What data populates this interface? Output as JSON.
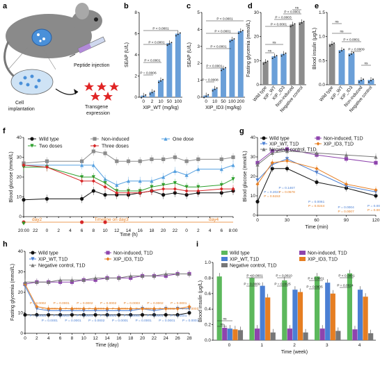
{
  "panel_labels": [
    "a",
    "b",
    "c",
    "d",
    "e",
    "f",
    "g",
    "h",
    "i"
  ],
  "panel_a": {
    "peptide_label": "Peptide injection",
    "implant_label_1": "Cell",
    "implant_label_2": "implantation",
    "expr_label_1": "Transgene",
    "expr_label_2": "expression"
  },
  "colors": {
    "wild": "#111111",
    "noninduced": "#9b59b6",
    "xipwt": "#4a7fd4",
    "xipid3": "#e67e22",
    "negctrl": "#777777",
    "bar_blue": "#6a9fd8",
    "twodoses": "#2ca02c",
    "threedoses": "#d62728",
    "onedose": "#56a0e0",
    "grey": "#8c8c8c",
    "purple": "#8e44ad",
    "green": "#5cb85c"
  },
  "chart_data": [
    {
      "panel": "b",
      "type": "bar",
      "categories": [
        "0",
        "2",
        "10",
        "50",
        "100"
      ],
      "values": [
        0.15,
        0.5,
        1.6,
        5.1,
        6.0
      ],
      "xlabel": "XIP_WT (mg/kg)",
      "ylabel": "SEAP (U/L)",
      "ylim": [
        0,
        8
      ],
      "yticks": [
        "0",
        "2",
        "4",
        "6",
        "8"
      ],
      "annotations": [
        "P = 0.0006",
        "P < 0.0001",
        "P < 0.0001",
        "P < 0.0001"
      ]
    },
    {
      "panel": "c",
      "type": "bar",
      "categories": [
        "0",
        "10",
        "50",
        "100",
        "200"
      ],
      "values": [
        0.1,
        0.5,
        1.7,
        3.4,
        3.9
      ],
      "xlabel": "XIP_ID3 (mg/kg)",
      "ylabel": "SEAP (U/L)",
      "ylim": [
        0,
        5
      ],
      "yticks": [
        "0",
        "1",
        "2",
        "3",
        "4",
        "5"
      ],
      "annotations": [
        "P = 0.0008",
        "P < 0.0001",
        "P < 0.0001",
        "P < 0.0001",
        "P < 0.0001"
      ]
    },
    {
      "panel": "d",
      "type": "bar",
      "categories": [
        "Wild type",
        "XIP_WT",
        "XIP_ID3",
        "Non-induced",
        "Negative control"
      ],
      "values": [
        9.5,
        11.8,
        12.8,
        25.0,
        26.0
      ],
      "ylabel": "Fasting glycemia (mmol/L)",
      "ylim": [
        0,
        30
      ],
      "yticks": [
        "0",
        "10",
        "20",
        "30"
      ],
      "annotations": [
        "ns",
        "ns",
        "P < 0.0001",
        "P = 0.0003",
        "P < 0.0001",
        "ns"
      ]
    },
    {
      "panel": "e",
      "type": "bar",
      "categories": [
        "Wild type",
        "XIP_WT",
        "XIP_ID3",
        "Non-induced",
        "Negative control"
      ],
      "values": [
        0.85,
        0.72,
        0.65,
        0.1,
        0.1
      ],
      "ylabel": "Blood insulin (μg/L)",
      "ylim": [
        0,
        1.5
      ],
      "yticks": [
        "0.0",
        "0.5",
        "1.0",
        "1.5"
      ],
      "annotations": [
        "ns",
        "ns",
        "P = 0.0009",
        "P < 0.0001",
        "ns"
      ]
    },
    {
      "panel": "f",
      "type": "line",
      "xlabel": "Time (h)",
      "ylabel": "Blood glucose (mmol/L)",
      "ylim": [
        0,
        40
      ],
      "yticks": [
        "0",
        "10",
        "20",
        "30",
        "40"
      ],
      "xticks": [
        "20:00",
        "22",
        "0",
        "2",
        "4",
        "6",
        "8",
        "10",
        "12",
        "14",
        "16",
        "18",
        "20",
        "22",
        "0",
        "2",
        "4",
        "6",
        "8:00"
      ],
      "x": [
        0,
        2,
        10,
        11,
        12,
        13,
        14,
        15,
        16,
        17,
        18,
        19,
        20,
        22,
        23
      ],
      "series": [
        {
          "name": "Wild type",
          "values": [
            8.5,
            9,
            9,
            13,
            11,
            11,
            11,
            12,
            13,
            11,
            12,
            11,
            12,
            12,
            13
          ]
        },
        {
          "name": "Non-induced",
          "values": [
            27,
            28,
            28,
            33,
            32,
            28,
            28,
            28,
            29,
            29,
            30,
            28,
            29,
            29,
            30
          ]
        },
        {
          "name": "One dose",
          "values": [
            26,
            26,
            26,
            26,
            19,
            16,
            18,
            18,
            18,
            20,
            23,
            21,
            24,
            24,
            26
          ]
        },
        {
          "name": "Two doses",
          "values": [
            25,
            25,
            20,
            20,
            17,
            13,
            13,
            13,
            15,
            16,
            17,
            15,
            15,
            16,
            19
          ]
        },
        {
          "name": "Three doses",
          "values": [
            26,
            25,
            18,
            18,
            15,
            12,
            12,
            12,
            13,
            14,
            14,
            13,
            13,
            14,
            14
          ]
        }
      ],
      "timeline": {
        "day2": "day2",
        "day3": "Timeline on day3",
        "day4": "day4"
      }
    },
    {
      "panel": "g",
      "type": "line",
      "xlabel": "Time (min)",
      "ylabel": "Blood glucose (mmol/L)",
      "ylim": [
        0,
        40
      ],
      "yticks": [
        "0",
        "10",
        "20",
        "30",
        "40"
      ],
      "x": [
        0,
        15,
        30,
        60,
        90,
        120
      ],
      "xticks": [
        "0",
        "30",
        "60",
        "90",
        "120"
      ],
      "series": [
        {
          "name": "Wild type",
          "values": [
            7,
            24,
            24,
            17,
            14,
            10
          ]
        },
        {
          "name": "Non-induced, T1D",
          "values": [
            27,
            33,
            34,
            31,
            29,
            27
          ]
        },
        {
          "name": "XIP_WT, T1D",
          "values": [
            18,
            26,
            29,
            22,
            15,
            12
          ]
        },
        {
          "name": "XIP_ID3, T1D",
          "values": [
            16,
            27,
            28,
            24,
            16,
            13
          ]
        },
        {
          "name": "Negative control, T1D",
          "values": [
            26,
            32,
            33,
            32,
            31,
            30
          ]
        }
      ],
      "annotations_blue": [
        "P = 0.2021",
        "P = 0.1467",
        "P = 0.0061",
        "P = 0.0004",
        "P = 0.0024"
      ],
      "annotations_orange": [
        "P = 0.5153",
        "P = 0.0578",
        "P = 0.0244",
        "P = 0.0007",
        "P = 0.0009"
      ]
    },
    {
      "panel": "h",
      "type": "line",
      "xlabel": "Time (day)",
      "ylabel": "Fasting glycemia (mmol/L)",
      "ylim": [
        0,
        40
      ],
      "yticks": [
        "0",
        "10",
        "20",
        "30",
        "40"
      ],
      "x": [
        0,
        2,
        4,
        6,
        8,
        10,
        12,
        14,
        16,
        18,
        20,
        22,
        24,
        26,
        28
      ],
      "series": [
        {
          "name": "Wild type",
          "values": [
            9,
            9,
            9,
            9,
            9,
            9,
            9,
            9,
            9,
            9,
            9,
            9,
            9,
            9,
            10
          ]
        },
        {
          "name": "Non-induced, T1D",
          "values": [
            24,
            25,
            25,
            25,
            25,
            26,
            26,
            27,
            27,
            27,
            28,
            28,
            28,
            29,
            29
          ]
        },
        {
          "name": "XIP_WT, T1D",
          "values": [
            23,
            12,
            11,
            11,
            11,
            11,
            11,
            11,
            11,
            11,
            12,
            11,
            12,
            12,
            12
          ]
        },
        {
          "name": "XIP_ID3, T1D",
          "values": [
            24,
            13,
            12,
            12,
            12,
            12,
            12,
            12,
            12,
            12,
            12,
            12,
            12,
            12,
            13
          ]
        },
        {
          "name": "Negative control, T1D",
          "values": [
            25,
            25,
            25,
            26,
            26,
            26,
            27,
            27,
            27,
            28,
            28,
            28,
            29,
            29,
            29
          ]
        }
      ],
      "annotations_orange": [
        "P = 0.0002",
        "P = 0.0002",
        "P = 0.0001",
        "P = 0.0002",
        "P = 0.0002",
        "P = 0.0006",
        "P = 0.0002",
        "P = 0.0002",
        "P = 0.0003",
        "P = 0.0004",
        "P = 0.0002",
        "P = 0.0002",
        "P = 0.0001",
        "P = 0.0001"
      ],
      "annotations_blue": [
        "P = 0.0003",
        "P = 0.0001",
        "P = 0.0003",
        "P = 0.0001",
        "P = 0.0001",
        "P = 0.0002",
        "P = 0.0001",
        "P = 0.0001",
        "P = 0.0001",
        "P = 0.0001",
        "P = 0.0001",
        "P = 0.0001",
        "P = 0.0001",
        "P = 0.0001"
      ]
    },
    {
      "panel": "i",
      "type": "bar",
      "categories": [
        "0",
        "1",
        "2",
        "3",
        "4"
      ],
      "xlabel": "Time (week)",
      "ylabel": "Blood insulin (μg/L)",
      "ylim": [
        0,
        1.0
      ],
      "yticks": [
        "0.0",
        "0.2",
        "0.4",
        "0.6",
        "0.8",
        "1.0"
      ],
      "series": [
        {
          "name": "Wild type",
          "values": [
            0.82,
            0.8,
            0.77,
            0.82,
            0.86
          ]
        },
        {
          "name": "Non-induced, T1D",
          "values": [
            0.16,
            0.15,
            0.15,
            0.15,
            0.14
          ]
        },
        {
          "name": "XIP_WT, T1D",
          "values": [
            0.15,
            0.7,
            0.65,
            0.74,
            0.65
          ]
        },
        {
          "name": "XIP_ID3, T1D",
          "values": [
            0.14,
            0.55,
            0.62,
            0.6,
            0.56
          ]
        },
        {
          "name": "Negative control, T1D",
          "values": [
            0.13,
            0.1,
            0.1,
            0.12,
            0.09
          ]
        }
      ],
      "annotations": [
        "ns",
        "ns",
        "P < 0.0001",
        "P = 0.0009",
        "P = 0.0010",
        "P = 0.0025",
        "P < 0.0001",
        "P = 0.0005",
        "P < 0.0001",
        "P = 0.0024"
      ]
    }
  ]
}
